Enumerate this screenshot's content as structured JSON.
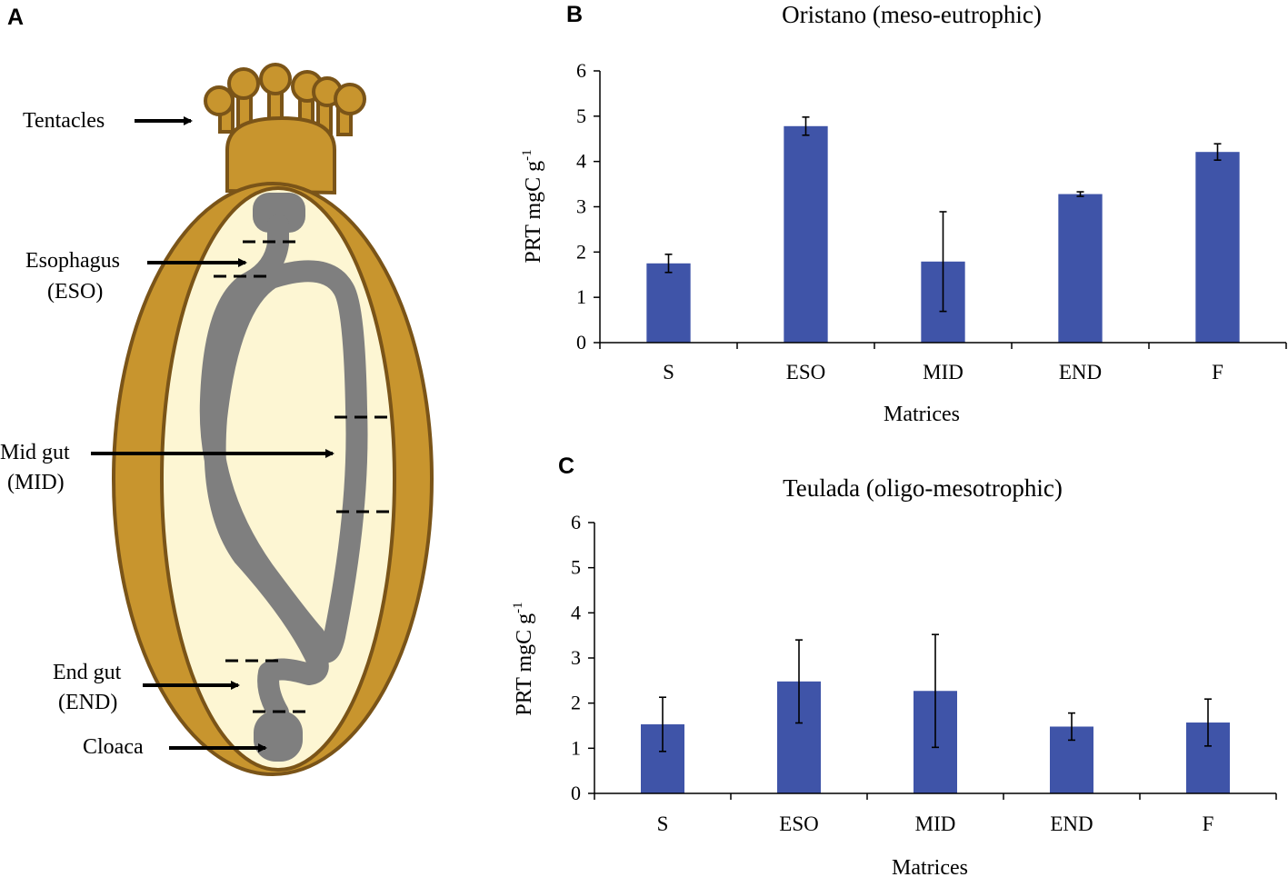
{
  "panels": {
    "a": {
      "letter": "A"
    },
    "b": {
      "letter": "B"
    },
    "c": {
      "letter": "C"
    }
  },
  "diagram": {
    "labels": {
      "tentacles": "Tentacles",
      "esophagus_line1": "Esophagus",
      "esophagus_line2": "(ESO)",
      "midgut_line1": "Mid gut",
      "midgut_line2": "(MID)",
      "endgut_line1": "End gut",
      "endgut_line2": "(END)",
      "cloaca": "Cloaca"
    },
    "colors": {
      "body": "#c8952e",
      "outline": "#7a5418",
      "interior": "#fdf6d3",
      "gut": "#7f7f7f"
    }
  },
  "chart_data": [
    {
      "panel": "B",
      "type": "bar",
      "title": "Oristano (meso-eutrophic)",
      "xlabel": "Matrices",
      "ylabel_main": "PRT mgC g",
      "ylabel_sup": "-1",
      "categories": [
        "S",
        "ESO",
        "MID",
        "END",
        "F"
      ],
      "values": [
        1.75,
        4.78,
        1.79,
        3.28,
        4.21
      ],
      "errors": [
        0.2,
        0.2,
        1.1,
        0.05,
        0.18
      ],
      "ylim": [
        0,
        6
      ],
      "yticks": [
        0,
        1,
        2,
        3,
        4,
        5,
        6
      ],
      "bar_color": "#3f54a8"
    },
    {
      "panel": "C",
      "type": "bar",
      "title": "Teulada (oligo-mesotrophic)",
      "xlabel": "Matrices",
      "ylabel_main": "PRT mgC g",
      "ylabel_sup": "-1",
      "categories": [
        "S",
        "ESO",
        "MID",
        "END",
        "F"
      ],
      "values": [
        1.53,
        2.48,
        2.27,
        1.48,
        1.57
      ],
      "errors": [
        0.6,
        0.92,
        1.25,
        0.3,
        0.52
      ],
      "ylim": [
        0,
        6
      ],
      "yticks": [
        0,
        1,
        2,
        3,
        4,
        5,
        6
      ],
      "bar_color": "#3f54a8"
    }
  ]
}
